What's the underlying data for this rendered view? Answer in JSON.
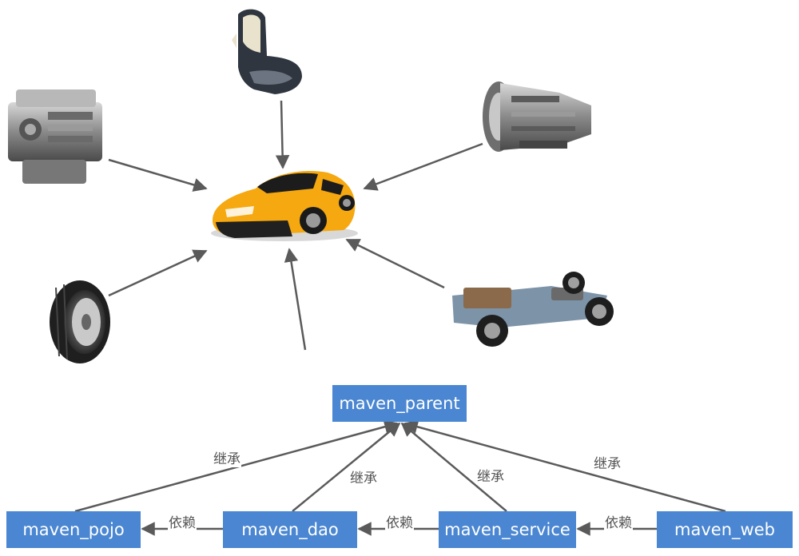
{
  "parts": [
    {
      "name": "seat-icon"
    },
    {
      "name": "engine-icon"
    },
    {
      "name": "transmission-icon"
    },
    {
      "name": "tire-icon"
    },
    {
      "name": "chassis-icon"
    },
    {
      "name": "car-icon"
    }
  ],
  "modules": {
    "parent": "maven_parent",
    "pojo": "maven_pojo",
    "dao": "maven_dao",
    "service": "maven_service",
    "web": "maven_web"
  },
  "labels": {
    "inherit": "继承",
    "depend": "依赖"
  },
  "colors": {
    "box": "#4a86d1",
    "arrow": "#5a5a5a",
    "car_body": "#f5a80f"
  }
}
